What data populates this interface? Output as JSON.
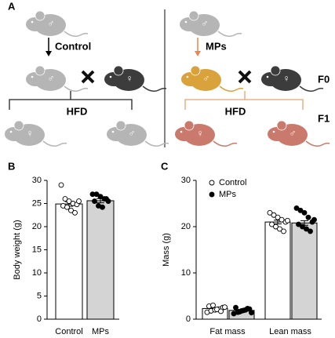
{
  "diagram": {
    "label": "A",
    "generation_labels": [
      "F0",
      "F1"
    ],
    "groups": [
      {
        "founder": "♂",
        "treatment": "Control",
        "sire": "♂",
        "dam": "♀",
        "diet": "HFD",
        "offspring": [
          "♀",
          "♂"
        ]
      },
      {
        "founder": "♂",
        "treatment": "MPs",
        "sire": "♂",
        "dam": "♀",
        "diet": "HFD",
        "offspring": [
          "♀",
          "♂"
        ]
      }
    ]
  },
  "chart_data": [
    {
      "type": "bar",
      "label": "B",
      "ylabel": "Body weight (g)",
      "categories": [
        "Control",
        "MPs"
      ],
      "values": [
        24.9,
        25.6
      ],
      "errors": [
        0.5,
        0.45
      ],
      "colors": [
        "#ffffff",
        "#d4d4d4"
      ],
      "point_colors": [
        "#ffffff",
        "#000000"
      ],
      "points": [
        [
          29,
          26,
          25.5,
          25,
          24.8,
          24.5,
          24.2,
          23.5,
          23,
          25.5
        ],
        [
          27,
          27,
          26.5,
          26,
          25.5,
          25.5,
          24.5,
          24.2,
          26
        ]
      ],
      "ylim": [
        0,
        30
      ],
      "yticks": [
        0,
        5,
        10,
        15,
        20,
        25,
        30
      ]
    },
    {
      "type": "bar",
      "label": "C",
      "ylabel": "Mass (g)",
      "categories": [
        "Fat mass",
        "Lean mass"
      ],
      "series": [
        {
          "name": "Control",
          "color": "#ffffff",
          "point_color": "#ffffff",
          "values": [
            2.3,
            21
          ],
          "errors": [
            0.2,
            0.4
          ],
          "points": [
            [
              1.5,
              1.8,
              2,
              2.2,
              2.5,
              2.8,
              3,
              2.1,
              1.7,
              2.6
            ],
            [
              23,
              22.5,
              22,
              21.5,
              21,
              20.5,
              20,
              19.5,
              19,
              21.3
            ]
          ]
        },
        {
          "name": "MPs",
          "color": "#d4d4d4",
          "point_color": "#000000",
          "values": [
            1.9,
            20.8
          ],
          "errors": [
            0.2,
            0.5
          ],
          "points": [
            [
              1.2,
              1.5,
              1.8,
              2,
              2.2,
              2.5,
              1.6,
              1.9,
              2.3,
              1.4
            ],
            [
              24,
              23.5,
              23,
              22,
              21,
              20.5,
              20,
              19.5,
              19,
              21.5
            ]
          ]
        }
      ],
      "legend": "upper left",
      "ylim": [
        0,
        30
      ],
      "yticks": [
        0,
        10,
        20,
        30
      ]
    }
  ]
}
